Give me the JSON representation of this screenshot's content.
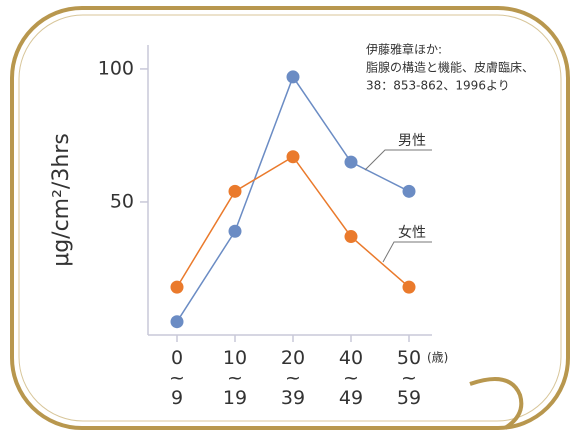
{
  "chart_data": {
    "type": "line",
    "ylabel": "μg/cm²/3hrs",
    "x_unit": "(歳)",
    "categories": [
      "0~9",
      "10~19",
      "20~39",
      "40~49",
      "50~59"
    ],
    "series": [
      {
        "name": "男性",
        "color": "#6b8cc4",
        "values": [
          5,
          39,
          97,
          65,
          54
        ]
      },
      {
        "name": "女性",
        "color": "#ea7a2c",
        "values": [
          18,
          54,
          67,
          37,
          18
        ]
      }
    ],
    "ylim": [
      0,
      109
    ],
    "yticks": [
      50,
      100
    ],
    "annotation": [
      "伊藤雅章ほか:",
      "脂腺の構造と機能、皮膚臨床、",
      "38：853-862、1996より"
    ]
  }
}
